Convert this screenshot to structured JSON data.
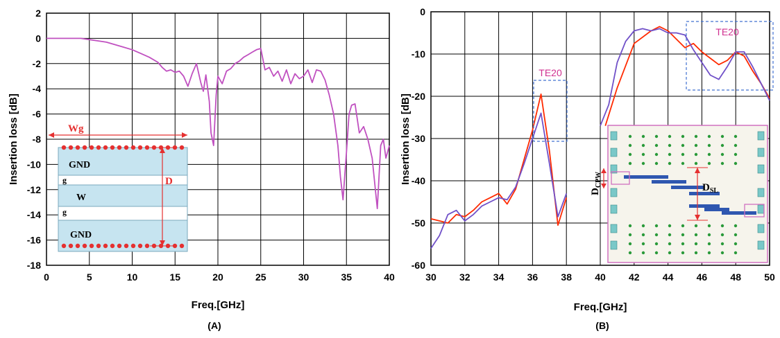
{
  "chart_data": [
    {
      "type": "line",
      "panel_label": "(A)",
      "xlabel": "Freq.[GHz]",
      "ylabel": "Insertion loss [dB]",
      "xlim": [
        0,
        40
      ],
      "ylim": [
        -18,
        2
      ],
      "xticks": [
        0,
        5,
        10,
        15,
        20,
        25,
        30,
        35,
        40
      ],
      "yticks": [
        2,
        0,
        -2,
        -4,
        -6,
        -8,
        -10,
        -12,
        -14,
        -16,
        -18
      ],
      "grid": true,
      "series": [
        {
          "color": "#c050c0",
          "x": [
            0,
            2,
            4,
            5,
            6,
            7,
            8,
            9,
            10,
            11,
            12,
            13,
            13.5,
            14,
            14.5,
            15,
            15.5,
            16,
            16.5,
            17,
            17.5,
            18,
            18.3,
            18.6,
            19,
            19.2,
            19.5,
            19.8,
            20,
            20.5,
            21,
            21.5,
            22,
            22.5,
            23,
            23.5,
            24,
            24.5,
            25,
            25.5,
            26,
            26.5,
            27,
            27.5,
            28,
            28.5,
            29,
            29.5,
            30,
            30.5,
            31,
            31.5,
            32,
            32.5,
            33,
            33.5,
            34,
            34.3,
            34.6,
            35,
            35.3,
            35.6,
            36,
            36.5,
            37,
            37.5,
            38,
            38.3,
            38.6,
            39,
            39.3,
            39.6,
            40
          ],
          "y": [
            0,
            0,
            0,
            -0.1,
            -0.2,
            -0.3,
            -0.5,
            -0.7,
            -0.9,
            -1.2,
            -1.5,
            -1.9,
            -2.3,
            -2.6,
            -2.5,
            -2.7,
            -2.6,
            -3.0,
            -3.8,
            -2.8,
            -2.0,
            -3.5,
            -4.2,
            -2.9,
            -5.0,
            -7.5,
            -8.5,
            -4.5,
            -3.0,
            -3.6,
            -2.6,
            -2.4,
            -2.0,
            -1.8,
            -1.5,
            -1.3,
            -1.1,
            -0.9,
            -0.8,
            -2.5,
            -2.3,
            -3.0,
            -2.6,
            -3.4,
            -2.5,
            -3.6,
            -2.8,
            -3.2,
            -3.0,
            -2.5,
            -3.5,
            -2.5,
            -2.6,
            -3.3,
            -4.5,
            -6.0,
            -8.5,
            -11.0,
            -12.8,
            -9.0,
            -6.0,
            -5.3,
            -5.2,
            -7.5,
            -7.0,
            -8.0,
            -9.5,
            -11.5,
            -13.5,
            -8.5,
            -8.0,
            -9.5,
            -8.5
          ]
        }
      ],
      "inset": {
        "labels": {
          "wg": "Wg",
          "gnd_top": "GND",
          "g_top": "g",
          "w": "W",
          "g_bottom": "g",
          "gnd_bottom": "GND",
          "d": "D"
        }
      }
    },
    {
      "type": "line",
      "panel_label": "(B)",
      "xlabel": "Freq.[GHz]",
      "ylabel": "Insertion loss [dB]",
      "xlim": [
        30,
        50
      ],
      "ylim": [
        -60,
        0
      ],
      "xticks": [
        30,
        32,
        34,
        36,
        38,
        40,
        42,
        44,
        46,
        48,
        50
      ],
      "yticks": [
        0,
        -10,
        -20,
        -30,
        -40,
        -50,
        -60
      ],
      "grid": true,
      "series": [
        {
          "color": "#ff2a00",
          "segments": [
            {
              "x": [
                30,
                30.5,
                31,
                31.5,
                32,
                32.5,
                33,
                33.5,
                34,
                34.5,
                35,
                35.5,
                36,
                36.5,
                37,
                37.5,
                38
              ],
              "y": [
                -49,
                -49.5,
                -50,
                -48,
                -48.5,
                -47,
                -45,
                -44,
                -43,
                -45.5,
                -42,
                -35,
                -28,
                -19.5,
                -33,
                -50.5,
                -44
              ]
            },
            {
              "x": [
                40.3,
                41,
                42,
                43,
                43.5,
                44,
                44.5,
                45,
                45.5,
                46,
                46.5,
                47,
                47.5,
                48,
                48.5,
                49,
                49.5,
                50
              ],
              "y": [
                -27,
                -18,
                -7.5,
                -4.5,
                -3.5,
                -4.5,
                -6.5,
                -8.5,
                -7.5,
                -9.5,
                -11.0,
                -12.5,
                -11.5,
                -9.5,
                -10.5,
                -14,
                -17,
                -20.5
              ]
            }
          ]
        },
        {
          "color": "#7050c8",
          "segments": [
            {
              "x": [
                30,
                30.5,
                31,
                31.5,
                32,
                32.5,
                33,
                33.5,
                34,
                34.5,
                35,
                35.5,
                36,
                36.5,
                37,
                37.5,
                38
              ],
              "y": [
                -56,
                -53,
                -48,
                -47,
                -49.5,
                -48,
                -46,
                -45,
                -44,
                -44.5,
                -41.5,
                -36,
                -30,
                -24,
                -36,
                -48.5,
                -43
              ]
            },
            {
              "x": [
                40,
                40.5,
                41,
                41.5,
                42,
                42.5,
                43,
                43.5,
                44,
                44.5,
                45,
                45.5,
                46,
                46.5,
                47,
                47.5,
                48,
                48.5,
                49,
                49.5,
                50
              ],
              "y": [
                -27,
                -22,
                -12,
                -7,
                -4.5,
                -4,
                -4.5,
                -4,
                -5,
                -5,
                -5.5,
                -9,
                -12,
                -15,
                -16,
                -13,
                -9.5,
                -9.5,
                -13,
                -17,
                -21
              ]
            }
          ]
        }
      ],
      "annotations": [
        {
          "text": "TE20",
          "x": 36.6,
          "y": -14.3
        },
        {
          "text": "TE20",
          "x": 47.6,
          "y": -5.2
        }
      ],
      "inset": {
        "labels": {
          "dcpw_main": "D",
          "dcpw_sub": "CPW",
          "dsl_main": "D",
          "dsl_sub": "SL"
        }
      }
    }
  ]
}
